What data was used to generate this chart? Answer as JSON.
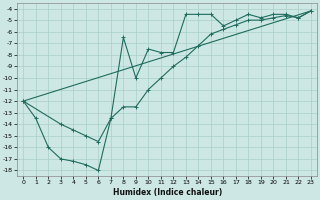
{
  "xlabel": "Humidex (Indice chaleur)",
  "bg_color": "#cde8e4",
  "grid_color": "#a8cfc8",
  "line_color": "#1f6b5e",
  "xlim": [
    -0.5,
    23.5
  ],
  "ylim": [
    -18.5,
    -3.5
  ],
  "xticks": [
    0,
    1,
    2,
    3,
    4,
    5,
    6,
    7,
    8,
    9,
    10,
    11,
    12,
    13,
    14,
    15,
    16,
    17,
    18,
    19,
    20,
    21,
    22,
    23
  ],
  "yticks": [
    -18,
    -17,
    -16,
    -15,
    -14,
    -13,
    -12,
    -11,
    -10,
    -9,
    -8,
    -7,
    -6,
    -5,
    -4
  ],
  "line1_x": [
    0,
    1,
    2,
    3,
    4,
    5,
    6,
    7,
    8,
    9,
    10,
    11,
    12,
    13,
    14,
    15,
    16,
    17,
    18,
    19,
    20,
    21,
    22,
    23
  ],
  "line1_y": [
    -12,
    -13.5,
    -16,
    -17,
    -17.2,
    -17.5,
    -18.0,
    -13.5,
    -6.5,
    -10.0,
    -7.5,
    -7.8,
    -7.8,
    -4.5,
    -4.5,
    -4.5,
    -5.5,
    -5.0,
    -4.5,
    -4.8,
    -4.5,
    -4.5,
    -4.8,
    -4.2
  ],
  "line2_x": [
    0,
    3,
    4,
    5,
    6,
    7,
    8,
    9,
    10,
    11,
    12,
    13,
    14,
    15,
    16,
    17,
    18,
    19,
    20,
    21,
    22,
    23
  ],
  "line2_y": [
    -12,
    -14.0,
    -14.5,
    -15.0,
    -15.5,
    -13.5,
    -12.5,
    -12.5,
    -11.0,
    -10.0,
    -9.0,
    -8.2,
    -7.2,
    -6.2,
    -5.8,
    -5.4,
    -5.0,
    -5.0,
    -4.8,
    -4.6,
    -4.8,
    -4.2
  ],
  "line3_x": [
    0,
    23
  ],
  "line3_y": [
    -12,
    -4.2
  ]
}
